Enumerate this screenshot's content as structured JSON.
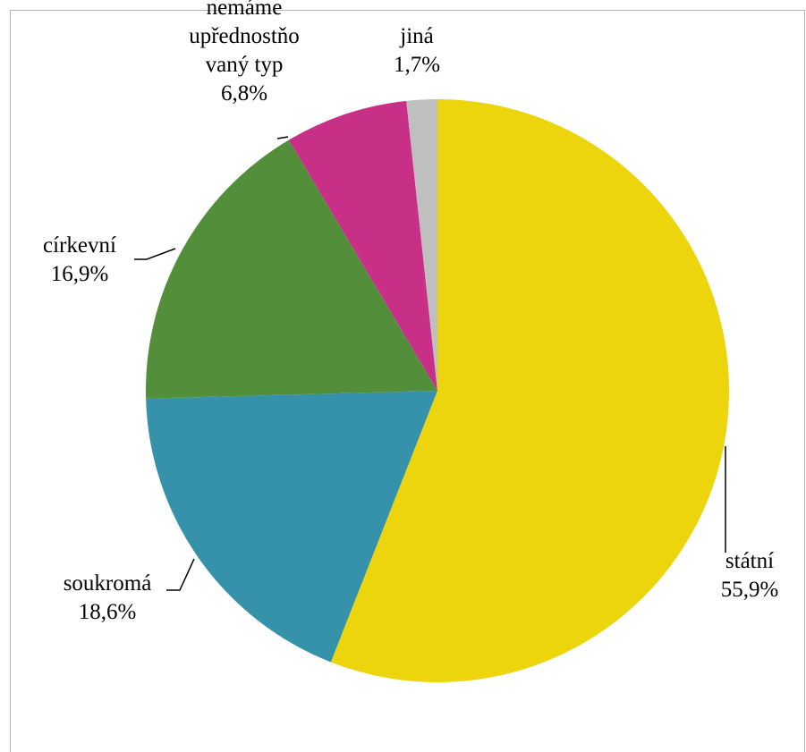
{
  "chart_data": {
    "type": "pie",
    "title": "",
    "slices": [
      {
        "label_lines": [
          "státní"
        ],
        "value_label": "55,9%",
        "value": 55.9,
        "color": "#EDD50E"
      },
      {
        "label_lines": [
          "soukromá"
        ],
        "value_label": "18,6%",
        "value": 18.6,
        "color": "#3592AA"
      },
      {
        "label_lines": [
          "církevní"
        ],
        "value_label": "16,9%",
        "value": 16.9,
        "color": "#538F3B"
      },
      {
        "label_lines": [
          "nemáme",
          "upřednostňo",
          "vaný typ"
        ],
        "value_label": "6,8%",
        "value": 6.8,
        "color": "#C83087"
      },
      {
        "label_lines": [
          "jiná"
        ],
        "value_label": "1,7%",
        "value": 1.7,
        "color": "#BFBFBF"
      }
    ]
  }
}
